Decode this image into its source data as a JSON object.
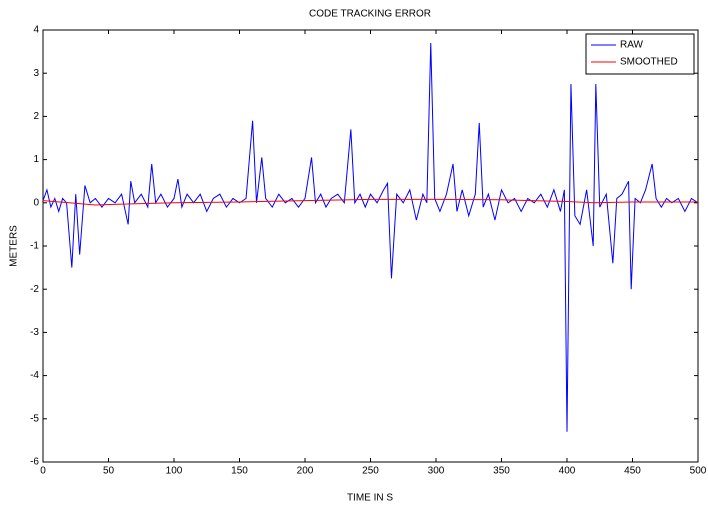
{
  "chart_data": {
    "type": "line",
    "title": "CODE TRACKING ERROR",
    "xlabel": "TIME IN S",
    "ylabel": "METERS",
    "xlim": [
      0,
      500
    ],
    "xticks": [
      0,
      50,
      100,
      150,
      200,
      250,
      300,
      350,
      400,
      450,
      500
    ],
    "ylim": [
      -6,
      4
    ],
    "yticks": [
      -6,
      -5,
      -4,
      -3,
      -2,
      -1,
      0,
      1,
      2,
      3,
      4
    ],
    "legend": "upper-right",
    "series": [
      {
        "name": "RAW",
        "color": "#0000ff",
        "x": [
          0,
          3,
          6,
          9,
          12,
          15,
          18,
          22,
          25,
          28,
          32,
          36,
          40,
          45,
          50,
          55,
          60,
          65,
          67,
          70,
          75,
          80,
          83,
          86,
          90,
          95,
          100,
          103,
          106,
          110,
          115,
          120,
          125,
          130,
          135,
          140,
          145,
          150,
          155,
          160,
          163,
          167,
          170,
          175,
          180,
          185,
          190,
          195,
          200,
          205,
          208,
          212,
          216,
          220,
          225,
          230,
          235,
          238,
          242,
          246,
          250,
          255,
          260,
          263,
          266,
          270,
          275,
          280,
          285,
          290,
          293,
          296,
          299,
          303,
          308,
          313,
          316,
          320,
          325,
          330,
          333,
          336,
          340,
          345,
          350,
          355,
          360,
          365,
          370,
          375,
          380,
          385,
          390,
          395,
          398,
          400,
          403,
          406,
          410,
          415,
          420,
          422,
          425,
          430,
          435,
          438,
          442,
          447,
          449,
          452,
          456,
          460,
          465,
          468,
          472,
          476,
          480,
          485,
          490,
          495,
          500
        ],
        "values": [
          0.05,
          0.3,
          -0.1,
          0.1,
          -0.2,
          0.1,
          0.0,
          -1.5,
          0.2,
          -1.2,
          0.4,
          0.0,
          0.1,
          -0.1,
          0.1,
          0.0,
          0.2,
          -0.5,
          0.5,
          0.0,
          0.2,
          -0.1,
          0.9,
          0.0,
          0.2,
          -0.1,
          0.1,
          0.55,
          -0.1,
          0.2,
          0.0,
          0.2,
          -0.2,
          0.1,
          0.2,
          -0.1,
          0.1,
          0.0,
          0.1,
          1.9,
          0.0,
          1.05,
          0.1,
          -0.1,
          0.2,
          0.0,
          0.1,
          -0.1,
          0.1,
          1.05,
          0.0,
          0.2,
          -0.1,
          0.1,
          0.2,
          0.0,
          1.7,
          0.0,
          0.2,
          -0.1,
          0.2,
          0.0,
          0.3,
          0.45,
          -1.75,
          0.2,
          0.0,
          0.3,
          -0.4,
          0.2,
          0.0,
          3.7,
          0.1,
          -0.2,
          0.2,
          0.9,
          -0.2,
          0.3,
          -0.3,
          0.2,
          1.85,
          -0.1,
          0.2,
          -0.4,
          0.3,
          0.0,
          0.1,
          -0.2,
          0.1,
          0.0,
          0.2,
          -0.1,
          0.3,
          -0.2,
          0.3,
          -5.3,
          2.75,
          -0.3,
          -0.5,
          0.3,
          -1.0,
          2.75,
          -0.1,
          0.2,
          -1.4,
          0.1,
          0.2,
          0.5,
          -2.0,
          0.1,
          0.0,
          0.3,
          0.9,
          0.1,
          -0.1,
          0.1,
          0.0,
          0.1,
          -0.2,
          0.1,
          0.0
        ]
      },
      {
        "name": "SMOOTHED",
        "color": "#ff0000",
        "x": [
          0,
          20,
          40,
          60,
          100,
          150,
          200,
          250,
          300,
          350,
          400,
          420,
          450,
          500
        ],
        "values": [
          0.05,
          0.0,
          -0.05,
          -0.03,
          0.0,
          0.02,
          0.05,
          0.08,
          0.08,
          0.07,
          0.03,
          0.0,
          0.02,
          0.02
        ]
      }
    ]
  }
}
